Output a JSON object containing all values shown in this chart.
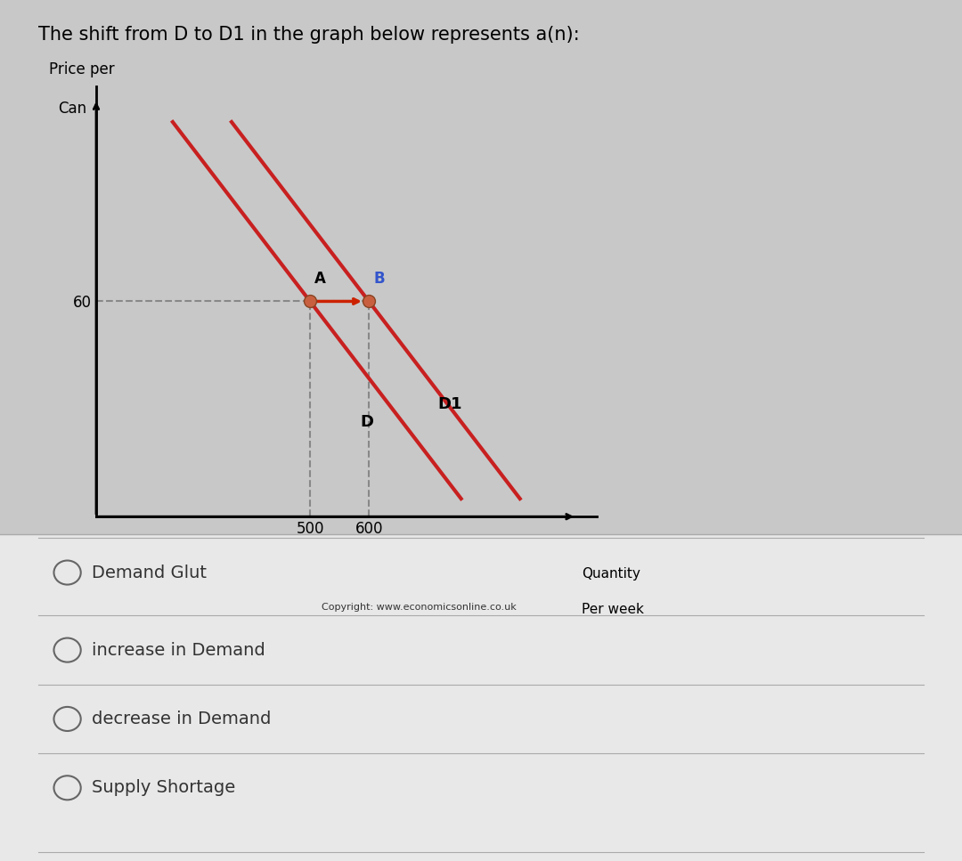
{
  "title": "The shift from D to D1 in the graph below represents a(n):",
  "title_fontsize": 15,
  "ylabel_line1": "Price per",
  "ylabel_line2": "Can",
  "xlabel_line1": "Quantity",
  "xlabel_line2": "Per week",
  "copyright_text": "Copyright: www.economicsonline.co.uk",
  "price_level": 60,
  "x_tick_500": 500,
  "x_tick_600": 600,
  "D_label": "D",
  "D1_label": "D1",
  "A_label": "A",
  "B_label": "B",
  "outer_bg_color": "#c8c8c8",
  "graph_bg_color": "#c8c8c8",
  "lower_bg_color": "#e8e8e8",
  "line_color": "#c82020",
  "dashed_line_color": "#888888",
  "arrow_color": "#cc2200",
  "dot_color": "#c86040",
  "options": [
    "Demand Glut",
    "increase in Demand",
    "decrease in Demand",
    "Supply Shortage"
  ],
  "option_fontsize": 14,
  "sep_line_color": "#aaaaaa",
  "xlim": [
    0,
    850
  ],
  "ylim": [
    0,
    120
  ],
  "D_x_start": 130,
  "D_x_end": 620,
  "D_y_start": 110,
  "D_y_end": 5,
  "D1_x_start": 230,
  "D1_x_end": 720,
  "D1_y_start": 110,
  "D1_y_end": 5
}
